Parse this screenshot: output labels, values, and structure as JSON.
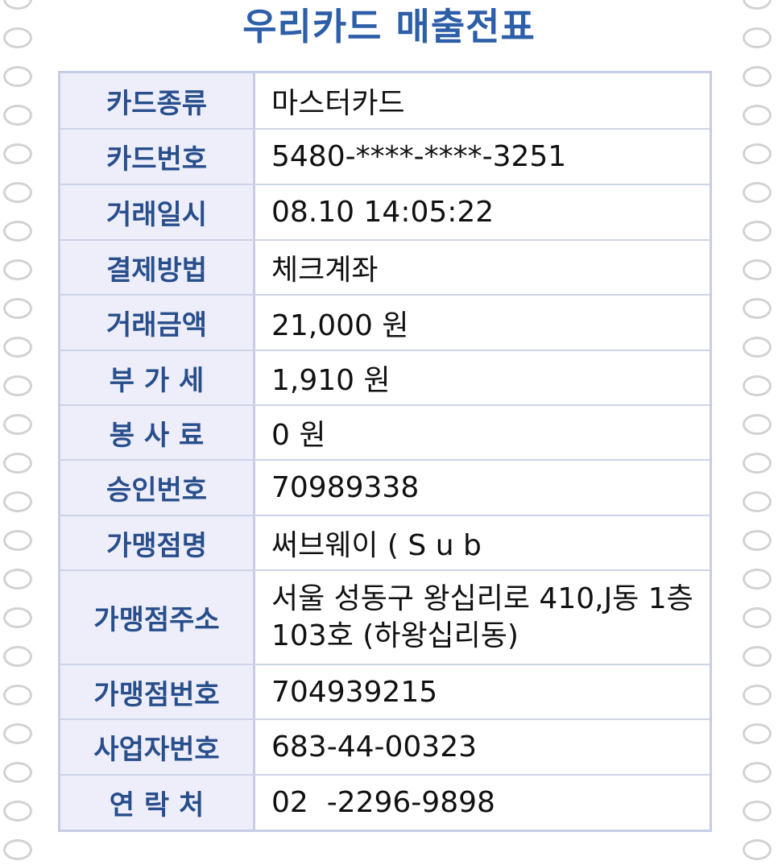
{
  "title": "우리카드 매출전표",
  "rows": [
    {
      "label": "카드종류",
      "value": "마스터카드"
    },
    {
      "label": "카드번호",
      "value": "5480-****-****-3251"
    },
    {
      "label": "거래일시",
      "value": "08.10 14:05:22"
    },
    {
      "label": "결제방법",
      "value": "체크계좌"
    },
    {
      "label": "거래금액",
      "value": "21,000 원"
    },
    {
      "label": "부 가 세",
      "value": "1,910 원"
    },
    {
      "label": "봉 사 료",
      "value": "0 원"
    },
    {
      "label": "승인번호",
      "value": "70989338"
    },
    {
      "label": "가맹점명",
      "value": "써브웨이 ( S u b"
    },
    {
      "label": "가맹점주소",
      "value": "서울 성동구 왕십리로 410,J동 1층 103호 (하왕십리동)"
    },
    {
      "label": "가맹점번호",
      "value": "704939215"
    },
    {
      "label": "사업자번호",
      "value": "683-44-00323"
    },
    {
      "label": "연 락 처",
      "value": "02  -2296-9898"
    }
  ],
  "colors": {
    "title": "#2d5ea8",
    "label_text": "#284e8c",
    "label_bg": "#edeef9",
    "border": "#c8cde6",
    "hole_border": "#d2d2d2"
  }
}
